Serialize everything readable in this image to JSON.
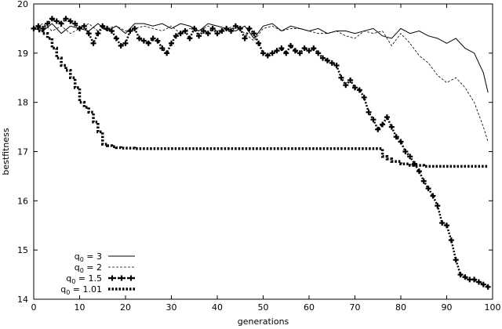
{
  "chart_data": {
    "type": "line",
    "xlabel": "generations",
    "ylabel": "bestfitness",
    "xlim": [
      0,
      100
    ],
    "ylim": [
      14,
      20
    ],
    "xticks": [
      0,
      10,
      20,
      30,
      40,
      50,
      60,
      70,
      80,
      90,
      100
    ],
    "yticks": [
      14,
      15,
      16,
      17,
      18,
      19,
      20
    ],
    "grid": false,
    "legend_position": "bottom-left",
    "series": [
      {
        "name": "q0 = 3",
        "legend_base": "q",
        "legend_sub": "0",
        "legend_rest": " = 3",
        "style": "solid",
        "x": [
          0,
          2,
          4,
          6,
          8,
          10,
          12,
          14,
          16,
          18,
          20,
          22,
          24,
          26,
          28,
          30,
          32,
          34,
          36,
          38,
          40,
          42,
          44,
          46,
          48,
          50,
          52,
          54,
          56,
          58,
          60,
          62,
          64,
          66,
          68,
          70,
          72,
          74,
          76,
          78,
          80,
          82,
          84,
          86,
          88,
          90,
          92,
          94,
          96,
          97,
          98,
          99
        ],
        "y": [
          19.5,
          19.45,
          19.6,
          19.4,
          19.55,
          19.5,
          19.45,
          19.6,
          19.45,
          19.55,
          19.4,
          19.6,
          19.6,
          19.55,
          19.6,
          19.5,
          19.6,
          19.55,
          19.45,
          19.6,
          19.55,
          19.5,
          19.45,
          19.55,
          19.3,
          19.55,
          19.6,
          19.45,
          19.55,
          19.5,
          19.45,
          19.5,
          19.4,
          19.45,
          19.45,
          19.4,
          19.45,
          19.5,
          19.35,
          19.3,
          19.5,
          19.4,
          19.45,
          19.35,
          19.3,
          19.2,
          19.3,
          19.1,
          19.0,
          18.8,
          18.6,
          18.2
        ]
      },
      {
        "name": "q0 = 2",
        "legend_base": "q",
        "legend_sub": "0",
        "legend_rest": " = 2",
        "style": "dashed",
        "x": [
          0,
          2,
          4,
          6,
          8,
          10,
          12,
          14,
          16,
          18,
          20,
          22,
          24,
          26,
          28,
          30,
          32,
          34,
          36,
          38,
          40,
          42,
          44,
          46,
          48,
          50,
          52,
          54,
          56,
          58,
          60,
          62,
          64,
          66,
          68,
          70,
          72,
          74,
          76,
          78,
          80,
          82,
          84,
          86,
          88,
          90,
          92,
          94,
          96,
          98,
          99
        ],
        "y": [
          19.5,
          19.6,
          19.45,
          19.55,
          19.4,
          19.5,
          19.6,
          19.45,
          19.5,
          19.55,
          19.45,
          19.5,
          19.55,
          19.5,
          19.45,
          19.55,
          19.4,
          19.5,
          19.45,
          19.55,
          19.45,
          19.5,
          19.55,
          19.4,
          19.25,
          19.5,
          19.55,
          19.45,
          19.5,
          19.5,
          19.45,
          19.4,
          19.4,
          19.45,
          19.35,
          19.3,
          19.45,
          19.4,
          19.45,
          19.15,
          19.4,
          19.2,
          18.95,
          18.8,
          18.55,
          18.4,
          18.5,
          18.3,
          18.0,
          17.5,
          17.2
        ]
      },
      {
        "name": "q0 = 1.5",
        "legend_base": "q",
        "legend_sub": "0",
        "legend_rest": " = 1.5",
        "style": "dotted-plus",
        "x": [
          0,
          1,
          2,
          3,
          4,
          5,
          6,
          7,
          8,
          9,
          10,
          11,
          12,
          13,
          14,
          15,
          16,
          17,
          18,
          19,
          20,
          21,
          22,
          23,
          24,
          25,
          26,
          27,
          28,
          29,
          30,
          31,
          32,
          33,
          34,
          35,
          36,
          37,
          38,
          39,
          40,
          41,
          42,
          43,
          44,
          45,
          46,
          47,
          48,
          49,
          50,
          51,
          52,
          53,
          54,
          55,
          56,
          57,
          58,
          59,
          60,
          61,
          62,
          63,
          64,
          65,
          66,
          67,
          68,
          69,
          70,
          71,
          72,
          73,
          74,
          75,
          76,
          77,
          78,
          79,
          80,
          81,
          82,
          83,
          84,
          85,
          86,
          87,
          88,
          89,
          90,
          91,
          92,
          93,
          94,
          95,
          96,
          97,
          98,
          99
        ],
        "y": [
          19.5,
          19.55,
          19.5,
          19.6,
          19.7,
          19.65,
          19.6,
          19.7,
          19.65,
          19.6,
          19.5,
          19.55,
          19.4,
          19.2,
          19.4,
          19.55,
          19.5,
          19.45,
          19.3,
          19.15,
          19.2,
          19.45,
          19.5,
          19.3,
          19.25,
          19.2,
          19.3,
          19.25,
          19.1,
          19.0,
          19.2,
          19.35,
          19.4,
          19.45,
          19.3,
          19.5,
          19.35,
          19.45,
          19.4,
          19.5,
          19.4,
          19.45,
          19.5,
          19.45,
          19.55,
          19.5,
          19.3,
          19.5,
          19.4,
          19.2,
          19.0,
          18.95,
          19.0,
          19.05,
          19.1,
          19.0,
          19.15,
          19.05,
          19.0,
          19.1,
          19.05,
          19.1,
          19.0,
          18.9,
          18.85,
          18.8,
          18.75,
          18.5,
          18.35,
          18.45,
          18.3,
          18.25,
          18.1,
          17.8,
          17.65,
          17.45,
          17.55,
          17.7,
          17.5,
          17.3,
          17.2,
          17.0,
          16.9,
          16.75,
          16.6,
          16.4,
          16.25,
          16.1,
          15.9,
          15.55,
          15.5,
          15.2,
          14.8,
          14.5,
          14.45,
          14.4,
          14.4,
          14.35,
          14.3,
          14.25
        ]
      },
      {
        "name": "q0 = 1.01",
        "legend_base": "q",
        "legend_sub": "0",
        "legend_rest": " = 1.01",
        "style": "dotted-square",
        "x": [
          0,
          1,
          2,
          3,
          4,
          5,
          6,
          7,
          8,
          9,
          10,
          11,
          12,
          13,
          14,
          15,
          16,
          17,
          18,
          19,
          20,
          22,
          24,
          26,
          28,
          30,
          35,
          40,
          45,
          50,
          55,
          60,
          65,
          70,
          75,
          76,
          77,
          78,
          80,
          82,
          85,
          90,
          95,
          99
        ],
        "y": [
          19.5,
          19.45,
          19.4,
          19.3,
          19.1,
          18.9,
          18.75,
          18.65,
          18.5,
          18.3,
          18.0,
          17.9,
          17.8,
          17.6,
          17.4,
          17.15,
          17.12,
          17.1,
          17.08,
          17.07,
          17.07,
          17.06,
          17.06,
          17.06,
          17.06,
          17.06,
          17.06,
          17.06,
          17.06,
          17.06,
          17.06,
          17.06,
          17.06,
          17.06,
          17.06,
          16.9,
          16.85,
          16.8,
          16.75,
          16.72,
          16.7,
          16.7,
          16.7,
          16.7
        ]
      }
    ]
  }
}
